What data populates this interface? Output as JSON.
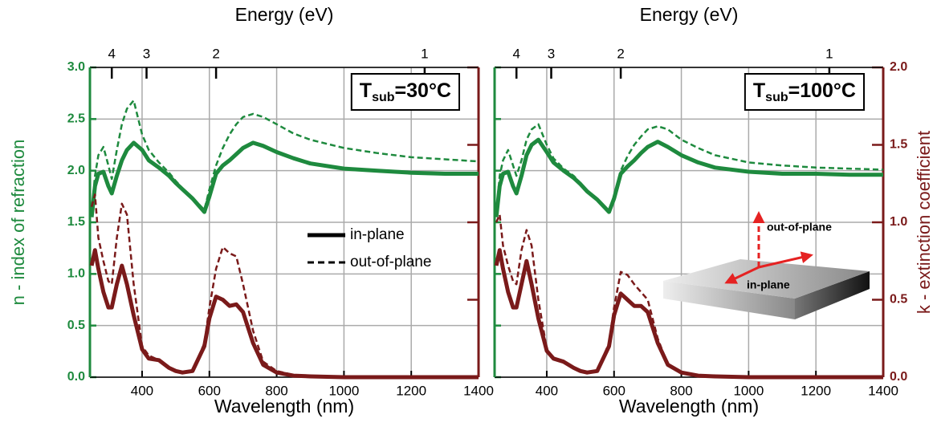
{
  "chart_data": [
    {
      "type": "line",
      "x2label": "Energy (eV)",
      "xlabel": "Wavelength (nm)",
      "ylabel": "n - index of refraction",
      "annotation": [
        "T",
        "sub",
        "=30°C"
      ],
      "xlim": [
        245,
        1400
      ],
      "xticks": [
        400,
        600,
        800,
        1000,
        1200,
        1400
      ],
      "x2ticks": [
        4,
        3,
        2,
        1
      ],
      "ylim": [
        0,
        3
      ],
      "yticks": [
        {
          "value": 0,
          "label": "0.0"
        },
        0.5,
        {
          "value": 1,
          "label": "1.0"
        },
        1.5,
        {
          "value": 2,
          "label": "2.0"
        },
        2.5,
        {
          "value": 3,
          "label": "3.0"
        }
      ],
      "y2lim": [
        0,
        2
      ],
      "y2ticks": [
        0,
        0.5,
        1,
        1.5,
        2
      ],
      "show_ytick_labels": true,
      "show_y2tick_labels": false,
      "ycolor": "#1e8a3e",
      "y2color": "#7a1a1a",
      "grid": true,
      "legend": true,
      "x": [
        250,
        260,
        270,
        285,
        300,
        310,
        325,
        340,
        355,
        375,
        400,
        420,
        450,
        480,
        500,
        520,
        550,
        585,
        600,
        620,
        640,
        660,
        680,
        700,
        730,
        760,
        800,
        850,
        900,
        1000,
        1100,
        1200,
        1300,
        1400
      ],
      "series": [
        {
          "name": "in-plane",
          "color": "#1e8a3e",
          "dash": "solid",
          "values": [
            1.55,
            1.85,
            1.97,
            1.99,
            1.85,
            1.78,
            1.95,
            2.1,
            2.2,
            2.27,
            2.2,
            2.1,
            2.03,
            1.95,
            1.88,
            1.82,
            1.73,
            1.6,
            1.75,
            1.97,
            2.05,
            2.1,
            2.16,
            2.22,
            2.27,
            2.24,
            2.18,
            2.12,
            2.07,
            2.02,
            2.0,
            1.98,
            1.97,
            1.97
          ]
        },
        {
          "name": "out-of-plane",
          "color": "#1e8a3e",
          "dash": "dashed",
          "values": [
            1.6,
            1.95,
            2.15,
            2.23,
            2.05,
            1.92,
            2.2,
            2.45,
            2.6,
            2.68,
            2.35,
            2.2,
            2.08,
            1.98,
            1.9,
            1.83,
            1.74,
            1.62,
            1.82,
            2.05,
            2.22,
            2.35,
            2.45,
            2.52,
            2.55,
            2.52,
            2.45,
            2.36,
            2.3,
            2.22,
            2.17,
            2.13,
            2.11,
            2.09
          ]
        },
        {
          "name": "in-plane",
          "color": "#7a1a1a",
          "dash": "solid",
          "axis": "y2",
          "values": [
            0.72,
            0.82,
            0.7,
            0.55,
            0.45,
            0.45,
            0.6,
            0.72,
            0.6,
            0.4,
            0.18,
            0.12,
            0.11,
            0.06,
            0.04,
            0.03,
            0.04,
            0.2,
            0.38,
            0.52,
            0.5,
            0.46,
            0.47,
            0.42,
            0.22,
            0.08,
            0.03,
            0.01,
            0.005,
            0,
            0,
            0,
            0,
            0
          ]
        },
        {
          "name": "out-of-plane",
          "color": "#7a1a1a",
          "dash": "dashed",
          "axis": "y2",
          "values": [
            1.1,
            1.18,
            0.9,
            0.75,
            0.62,
            0.6,
            0.9,
            1.12,
            1.05,
            0.6,
            0.2,
            0.14,
            0.11,
            0.06,
            0.04,
            0.03,
            0.04,
            0.22,
            0.45,
            0.7,
            0.84,
            0.8,
            0.78,
            0.6,
            0.3,
            0.1,
            0.04,
            0.015,
            0.005,
            0,
            0,
            0,
            0,
            0
          ]
        }
      ]
    },
    {
      "type": "line",
      "x2label": "Energy (eV)",
      "xlabel": "Wavelength (nm)",
      "y2label": "k - extinction coefficient",
      "annotation": [
        "T",
        "sub",
        "=100°C"
      ],
      "inset": [
        "out-of-plane",
        "in-plane"
      ],
      "xlim": [
        245,
        1400
      ],
      "xticks": [
        400,
        600,
        800,
        1000,
        1200,
        1400
      ],
      "x2ticks": [
        4,
        3,
        2,
        1
      ],
      "ylim": [
        0,
        3
      ],
      "yticks": [
        0,
        0.5,
        1,
        1.5,
        2,
        2.5,
        3
      ],
      "y2lim": [
        0,
        2
      ],
      "y2ticks": [
        {
          "value": 0,
          "label": "0.0"
        },
        0.5,
        {
          "value": 1,
          "label": "1.0"
        },
        1.5,
        {
          "value": 2,
          "label": "2.0"
        }
      ],
      "show_ytick_labels": false,
      "show_y2tick_labels": true,
      "ycolor": "#1e8a3e",
      "y2color": "#7a1a1a",
      "grid": true,
      "legend": false,
      "x": [
        250,
        260,
        270,
        285,
        300,
        310,
        325,
        340,
        355,
        375,
        400,
        420,
        450,
        480,
        500,
        520,
        550,
        585,
        600,
        620,
        640,
        660,
        680,
        700,
        730,
        760,
        800,
        850,
        900,
        1000,
        1100,
        1200,
        1300,
        1400
      ],
      "series": [
        {
          "name": "in-plane",
          "color": "#1e8a3e",
          "dash": "solid",
          "values": [
            1.55,
            1.85,
            1.97,
            1.99,
            1.85,
            1.78,
            1.95,
            2.15,
            2.25,
            2.3,
            2.18,
            2.08,
            2.0,
            1.93,
            1.87,
            1.8,
            1.72,
            1.6,
            1.73,
            1.97,
            2.04,
            2.1,
            2.17,
            2.23,
            2.28,
            2.23,
            2.15,
            2.08,
            2.03,
            1.99,
            1.97,
            1.97,
            1.96,
            1.96
          ]
        },
        {
          "name": "out-of-plane",
          "color": "#1e8a3e",
          "dash": "dashed",
          "values": [
            1.58,
            1.95,
            2.1,
            2.2,
            2.05,
            1.95,
            2.1,
            2.3,
            2.4,
            2.45,
            2.25,
            2.12,
            2.02,
            1.95,
            1.88,
            1.81,
            1.72,
            1.6,
            1.76,
            2.0,
            2.14,
            2.25,
            2.33,
            2.4,
            2.43,
            2.4,
            2.3,
            2.22,
            2.15,
            2.08,
            2.05,
            2.03,
            2.02,
            2.01
          ]
        },
        {
          "name": "in-plane",
          "color": "#7a1a1a",
          "dash": "solid",
          "axis": "y2",
          "values": [
            0.72,
            0.82,
            0.7,
            0.55,
            0.45,
            0.45,
            0.6,
            0.75,
            0.6,
            0.38,
            0.17,
            0.12,
            0.1,
            0.06,
            0.04,
            0.03,
            0.04,
            0.2,
            0.4,
            0.54,
            0.5,
            0.46,
            0.46,
            0.42,
            0.22,
            0.08,
            0.03,
            0.01,
            0.005,
            0,
            0,
            0,
            0,
            0
          ]
        },
        {
          "name": "out-of-plane",
          "color": "#7a1a1a",
          "dash": "dashed",
          "axis": "y2",
          "values": [
            1.0,
            1.05,
            0.85,
            0.72,
            0.62,
            0.6,
            0.82,
            0.95,
            0.85,
            0.5,
            0.18,
            0.12,
            0.1,
            0.06,
            0.04,
            0.03,
            0.04,
            0.22,
            0.45,
            0.68,
            0.66,
            0.6,
            0.55,
            0.5,
            0.25,
            0.08,
            0.03,
            0.01,
            0.005,
            0,
            0,
            0,
            0,
            0
          ]
        }
      ]
    }
  ]
}
